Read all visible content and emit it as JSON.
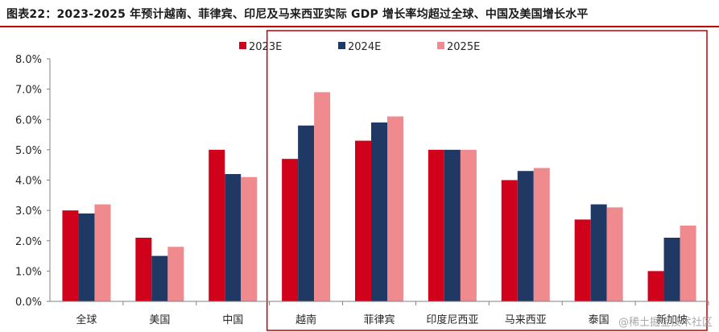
{
  "title": "图表22：2023-2025 年预计越南、菲律宾、印尼及马来西亚实际 GDP 增长率均超过全球、中国及美国增长水平",
  "watermark": "@稀土掘金技术社区",
  "colors": {
    "series_2023": "#d0021b",
    "series_2024": "#1f3864",
    "series_2025": "#ef8b8f",
    "axis": "#808080",
    "highlight_box": "#c00000"
  },
  "chart_data": {
    "type": "bar",
    "title": "",
    "xlabel": "",
    "ylabel": "",
    "ylim": [
      0,
      8
    ],
    "y_ticks": [
      "0.0%",
      "1.0%",
      "2.0%",
      "3.0%",
      "4.0%",
      "5.0%",
      "6.0%",
      "7.0%",
      "8.0%"
    ],
    "grid": false,
    "legend_position": "top",
    "categories": [
      "全球",
      "美国",
      "中国",
      "越南",
      "菲律宾",
      "印度尼西亚",
      "马来西亚",
      "泰国",
      "新加坡"
    ],
    "series": [
      {
        "name": "2023E",
        "values": [
          3.0,
          2.1,
          5.0,
          4.7,
          5.3,
          5.0,
          4.0,
          2.7,
          1.0
        ]
      },
      {
        "name": "2024E",
        "values": [
          2.9,
          1.5,
          4.2,
          5.8,
          5.9,
          5.0,
          4.3,
          3.2,
          2.1
        ]
      },
      {
        "name": "2025E",
        "values": [
          3.2,
          1.8,
          4.1,
          6.9,
          6.1,
          5.0,
          4.4,
          3.1,
          2.5
        ]
      }
    ],
    "highlight_categories": [
      "越南",
      "菲律宾",
      "印度尼西亚",
      "马来西亚",
      "泰国",
      "新加坡"
    ]
  }
}
